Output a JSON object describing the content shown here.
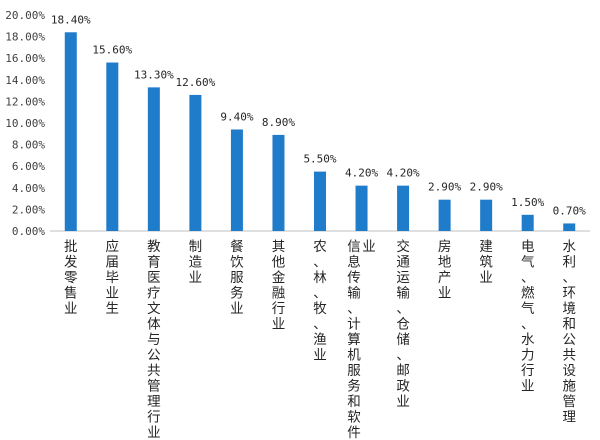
{
  "chart_data": {
    "type": "bar",
    "title": "",
    "xlabel": "",
    "ylabel": "",
    "ylim": [
      0,
      20
    ],
    "yticks": [
      "0.00%",
      "2.00%",
      "4.00%",
      "6.00%",
      "8.00%",
      "10.00%",
      "12.00%",
      "14.00%",
      "16.00%",
      "18.00%",
      "20.00%"
    ],
    "grid": false,
    "legend": "none",
    "bar_color": "#1f7ccb",
    "categories": [
      "批发零售业",
      "应届毕业生",
      "教育医疗文体与公共管理行业",
      "制造业",
      "餐饮服务业",
      "其他金融行业",
      "农、林、牧、渔业",
      "信息传输、计算机服务和软件业",
      "交通运输、仓储、邮政业",
      "房地产业",
      "建筑业",
      "电气、燃气、水力行业",
      "水利、环境和公共设施管理"
    ],
    "values": [
      18.4,
      15.6,
      13.3,
      12.6,
      9.4,
      8.9,
      5.5,
      4.2,
      4.2,
      2.9,
      2.9,
      1.5,
      0.7
    ],
    "data_labels": [
      "18.40%",
      "15.60%",
      "13.30%",
      "12.60%",
      "9.40%",
      "8.90%",
      "5.50%",
      "4.20%",
      "4.20%",
      "2.90%",
      "2.90%",
      "1.50%",
      "0.70%"
    ]
  }
}
